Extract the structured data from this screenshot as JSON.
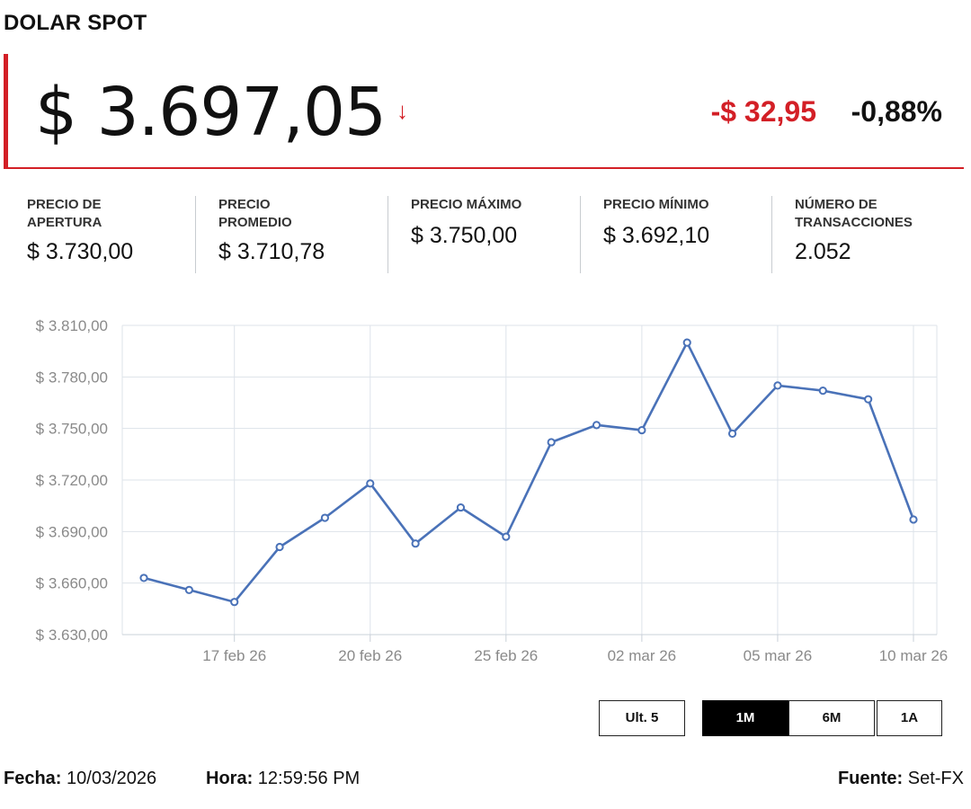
{
  "header": {
    "title": "DOLAR SPOT"
  },
  "quote": {
    "price": "$ 3.697,05",
    "arrow": "↓",
    "change": "-$ 32,95",
    "change_pct": "-0,88%"
  },
  "stats": [
    {
      "label": "PRECIO DE APERTURA",
      "value": "$ 3.730,00"
    },
    {
      "label": "PRECIO PROMEDIO",
      "value": "$ 3.710,78"
    },
    {
      "label": "PRECIO MÁXIMO",
      "value": "$ 3.750,00"
    },
    {
      "label": "PRECIO MÍNIMO",
      "value": "$ 3.692,10"
    },
    {
      "label": "NÚMERO DE TRANSACCIONES",
      "value": "2.052"
    }
  ],
  "chart_data": {
    "type": "line",
    "title": "",
    "xlabel": "",
    "ylabel": "",
    "ylim": [
      3630,
      3810
    ],
    "yticks": [
      "$ 3.630,00",
      "$ 3.660,00",
      "$ 3.690,00",
      "$ 3.720,00",
      "$ 3.750,00",
      "$ 3.780,00",
      "$ 3.810,00"
    ],
    "ytick_values": [
      3630,
      3660,
      3690,
      3720,
      3750,
      3780,
      3810
    ],
    "x": [
      "13 feb 26",
      "16 feb 26",
      "17 feb 26",
      "18 feb 26",
      "19 feb 26",
      "20 feb 26",
      "23 feb 26",
      "24 feb 26",
      "25 feb 26",
      "26 feb 26",
      "27 feb 26",
      "02 mar 26",
      "03 mar 26",
      "04 mar 26",
      "05 mar 26",
      "06 mar 26",
      "09 mar 26",
      "10 mar 26"
    ],
    "xtick_labels": [
      "17 feb 26",
      "20 feb 26",
      "25 feb 26",
      "02 mar 26",
      "05 mar 26",
      "10 mar 26"
    ],
    "series": [
      {
        "values": [
          3663,
          3656,
          3649,
          3681,
          3698,
          3718,
          3683,
          3704,
          3687,
          3742,
          3752,
          3749,
          3800,
          3747,
          3775,
          3772,
          3767,
          3697
        ]
      }
    ],
    "grid": true,
    "line_color": "#4a72b8"
  },
  "range_buttons": [
    {
      "label": "Ult. 5",
      "active": false
    },
    {
      "label": "1M",
      "active": true
    },
    {
      "label": "6M",
      "active": false
    },
    {
      "label": "1A",
      "active": false
    }
  ],
  "footer": {
    "fecha_label": "Fecha:",
    "fecha_value": "10/03/2026",
    "hora_label": "Hora:",
    "hora_value": "12:59:56 PM",
    "fuente_label": "Fuente:",
    "fuente_value": "Set-FX"
  },
  "colors": {
    "accent": "#d31f26",
    "line": "#4a72b8",
    "grid": "#dde3ea"
  }
}
